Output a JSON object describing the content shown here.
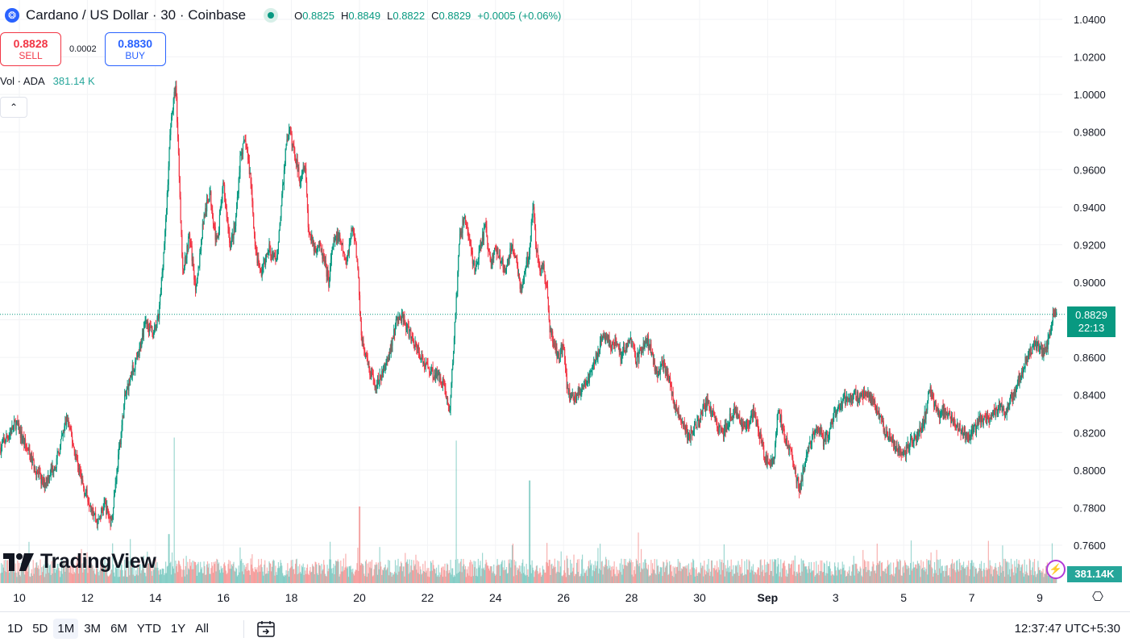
{
  "header": {
    "symbol_icon": "cardano-icon",
    "title": "Cardano / US Dollar · 30 · Coinbase",
    "ohlc": {
      "o_label": "O",
      "o": "0.8825",
      "h_label": "H",
      "h": "0.8849",
      "l_label": "L",
      "l": "0.8822",
      "c_label": "C",
      "c": "0.8829",
      "change": "+0.0005 (+0.06%)"
    }
  },
  "trade": {
    "sell_price": "0.8828",
    "sell_label": "SELL",
    "spread": "0.0002",
    "buy_price": "0.8830",
    "buy_label": "BUY"
  },
  "volume_legend": {
    "label": "Vol · ADA",
    "value": "381.14 K"
  },
  "logo": {
    "text": "TradingView"
  },
  "price_axis": {
    "last_price": "0.8829",
    "countdown": "22:13",
    "volume_label": "381.14K"
  },
  "bottom": {
    "ranges": [
      "1D",
      "5D",
      "1M",
      "3M",
      "6M",
      "YTD",
      "1Y",
      "All"
    ],
    "active_range": "1M",
    "clock": "12:37:47 UTC+5:30"
  },
  "colors": {
    "up": "#089981",
    "down": "#f23645",
    "accent": "#2962ff"
  },
  "chart_data": {
    "type": "candlestick",
    "ylim": [
      0.75,
      1.045
    ],
    "yticks": [
      0.76,
      0.78,
      0.8,
      0.82,
      0.84,
      0.86,
      0.88,
      0.9,
      0.92,
      0.94,
      0.96,
      0.98,
      1.0,
      1.02,
      1.04
    ],
    "ytick_labels": [
      "0.7600",
      "0.7800",
      "0.8000",
      "0.8200",
      "0.8400",
      "0.8600",
      "0.8800",
      "0.9000",
      "0.9200",
      "0.9400",
      "0.9600",
      "0.9800",
      "1.0000",
      "1.0200",
      "1.0400"
    ],
    "xticks": [
      {
        "t": 10,
        "label": "10"
      },
      {
        "t": 12,
        "label": "12"
      },
      {
        "t": 14,
        "label": "14"
      },
      {
        "t": 16,
        "label": "16"
      },
      {
        "t": 18,
        "label": "18"
      },
      {
        "t": 20,
        "label": "20"
      },
      {
        "t": 22,
        "label": "22"
      },
      {
        "t": 24,
        "label": "24"
      },
      {
        "t": 26,
        "label": "26"
      },
      {
        "t": 28,
        "label": "28"
      },
      {
        "t": 30,
        "label": "30"
      },
      {
        "t": 32,
        "label": "Sep"
      },
      {
        "t": 34,
        "label": "3"
      },
      {
        "t": 36,
        "label": "5"
      },
      {
        "t": 38,
        "label": "7"
      },
      {
        "t": 40,
        "label": "9"
      }
    ],
    "x_start": 9.45,
    "x_end": 40.5,
    "last_price": 0.8829,
    "price_path": [
      [
        9.45,
        0.812
      ],
      [
        9.9,
        0.825
      ],
      [
        10.3,
        0.808
      ],
      [
        10.7,
        0.792
      ],
      [
        11.1,
        0.805
      ],
      [
        11.4,
        0.828
      ],
      [
        11.6,
        0.812
      ],
      [
        11.9,
        0.79
      ],
      [
        12.1,
        0.782
      ],
      [
        12.3,
        0.772
      ],
      [
        12.5,
        0.782
      ],
      [
        12.7,
        0.772
      ],
      [
        12.9,
        0.805
      ],
      [
        13.1,
        0.838
      ],
      [
        13.3,
        0.852
      ],
      [
        13.5,
        0.86
      ],
      [
        13.7,
        0.88
      ],
      [
        13.95,
        0.872
      ],
      [
        14.1,
        0.882
      ],
      [
        14.3,
        0.93
      ],
      [
        14.45,
        0.985
      ],
      [
        14.6,
        1.005
      ],
      [
        14.7,
        0.958
      ],
      [
        14.8,
        0.905
      ],
      [
        15.0,
        0.925
      ],
      [
        15.2,
        0.895
      ],
      [
        15.4,
        0.932
      ],
      [
        15.6,
        0.948
      ],
      [
        15.8,
        0.92
      ],
      [
        16.0,
        0.952
      ],
      [
        16.2,
        0.92
      ],
      [
        16.35,
        0.93
      ],
      [
        16.5,
        0.968
      ],
      [
        16.65,
        0.975
      ],
      [
        16.8,
        0.955
      ],
      [
        16.95,
        0.915
      ],
      [
        17.1,
        0.905
      ],
      [
        17.35,
        0.918
      ],
      [
        17.55,
        0.91
      ],
      [
        17.7,
        0.94
      ],
      [
        17.85,
        0.975
      ],
      [
        17.95,
        0.98
      ],
      [
        18.1,
        0.968
      ],
      [
        18.25,
        0.955
      ],
      [
        18.4,
        0.965
      ],
      [
        18.5,
        0.928
      ],
      [
        18.65,
        0.918
      ],
      [
        18.8,
        0.92
      ],
      [
        18.95,
        0.912
      ],
      [
        19.1,
        0.9
      ],
      [
        19.2,
        0.918
      ],
      [
        19.35,
        0.925
      ],
      [
        19.5,
        0.918
      ],
      [
        19.6,
        0.91
      ],
      [
        19.7,
        0.92
      ],
      [
        19.8,
        0.93
      ],
      [
        19.9,
        0.918
      ],
      [
        20.0,
        0.892
      ],
      [
        20.05,
        0.872
      ],
      [
        20.15,
        0.862
      ],
      [
        20.3,
        0.852
      ],
      [
        20.45,
        0.845
      ],
      [
        20.6,
        0.848
      ],
      [
        20.75,
        0.855
      ],
      [
        20.85,
        0.86
      ],
      [
        20.95,
        0.868
      ],
      [
        21.1,
        0.88
      ],
      [
        21.25,
        0.882
      ],
      [
        21.4,
        0.875
      ],
      [
        21.55,
        0.87
      ],
      [
        21.7,
        0.865
      ],
      [
        21.85,
        0.858
      ],
      [
        22.0,
        0.855
      ],
      [
        22.15,
        0.852
      ],
      [
        22.3,
        0.85
      ],
      [
        22.45,
        0.848
      ],
      [
        22.55,
        0.84
      ],
      [
        22.65,
        0.83
      ],
      [
        22.75,
        0.86
      ],
      [
        22.85,
        0.892
      ],
      [
        22.95,
        0.925
      ],
      [
        23.1,
        0.935
      ],
      [
        23.25,
        0.92
      ],
      [
        23.4,
        0.905
      ],
      [
        23.55,
        0.918
      ],
      [
        23.7,
        0.93
      ],
      [
        23.85,
        0.91
      ],
      [
        24.0,
        0.918
      ],
      [
        24.15,
        0.912
      ],
      [
        24.3,
        0.905
      ],
      [
        24.45,
        0.918
      ],
      [
        24.6,
        0.915
      ],
      [
        24.75,
        0.895
      ],
      [
        24.9,
        0.908
      ],
      [
        25.0,
        0.918
      ],
      [
        25.1,
        0.942
      ],
      [
        25.2,
        0.918
      ],
      [
        25.3,
        0.905
      ],
      [
        25.4,
        0.91
      ],
      [
        25.5,
        0.898
      ],
      [
        25.6,
        0.875
      ],
      [
        25.7,
        0.868
      ],
      [
        25.85,
        0.86
      ],
      [
        26.0,
        0.868
      ],
      [
        26.1,
        0.845
      ],
      [
        26.2,
        0.838
      ],
      [
        26.35,
        0.84
      ],
      [
        26.5,
        0.842
      ],
      [
        26.65,
        0.845
      ],
      [
        26.8,
        0.852
      ],
      [
        26.95,
        0.86
      ],
      [
        27.1,
        0.868
      ],
      [
        27.25,
        0.872
      ],
      [
        27.4,
        0.865
      ],
      [
        27.55,
        0.868
      ],
      [
        27.7,
        0.86
      ],
      [
        27.85,
        0.868
      ],
      [
        28.0,
        0.868
      ],
      [
        28.15,
        0.858
      ],
      [
        28.3,
        0.865
      ],
      [
        28.45,
        0.87
      ],
      [
        28.6,
        0.862
      ],
      [
        28.75,
        0.85
      ],
      [
        28.9,
        0.858
      ],
      [
        29.05,
        0.852
      ],
      [
        29.2,
        0.84
      ],
      [
        29.35,
        0.83
      ],
      [
        29.5,
        0.825
      ],
      [
        29.65,
        0.818
      ],
      [
        29.8,
        0.82
      ],
      [
        29.95,
        0.825
      ],
      [
        30.1,
        0.832
      ],
      [
        30.25,
        0.836
      ],
      [
        30.4,
        0.83
      ],
      [
        30.55,
        0.822
      ],
      [
        30.7,
        0.82
      ],
      [
        30.85,
        0.826
      ],
      [
        31.0,
        0.832
      ],
      [
        31.15,
        0.826
      ],
      [
        31.3,
        0.822
      ],
      [
        31.45,
        0.826
      ],
      [
        31.6,
        0.83
      ],
      [
        31.75,
        0.82
      ],
      [
        31.9,
        0.808
      ],
      [
        32.05,
        0.802
      ],
      [
        32.2,
        0.808
      ],
      [
        32.3,
        0.832
      ],
      [
        32.4,
        0.826
      ],
      [
        32.55,
        0.815
      ],
      [
        32.7,
        0.808
      ],
      [
        32.85,
        0.795
      ],
      [
        32.95,
        0.79
      ],
      [
        33.05,
        0.8
      ],
      [
        33.2,
        0.812
      ],
      [
        33.35,
        0.818
      ],
      [
        33.5,
        0.822
      ],
      [
        33.65,
        0.815
      ],
      [
        33.8,
        0.82
      ],
      [
        33.95,
        0.828
      ],
      [
        34.1,
        0.832
      ],
      [
        34.25,
        0.838
      ],
      [
        34.4,
        0.838
      ],
      [
        34.55,
        0.84
      ],
      [
        34.7,
        0.838
      ],
      [
        34.85,
        0.842
      ],
      [
        35.0,
        0.838
      ],
      [
        35.15,
        0.835
      ],
      [
        35.3,
        0.828
      ],
      [
        35.45,
        0.82
      ],
      [
        35.6,
        0.818
      ],
      [
        35.75,
        0.812
      ],
      [
        35.9,
        0.808
      ],
      [
        36.05,
        0.81
      ],
      [
        36.2,
        0.815
      ],
      [
        36.35,
        0.818
      ],
      [
        36.5,
        0.822
      ],
      [
        36.65,
        0.83
      ],
      [
        36.75,
        0.845
      ],
      [
        36.9,
        0.835
      ],
      [
        37.05,
        0.83
      ],
      [
        37.2,
        0.832
      ],
      [
        37.35,
        0.828
      ],
      [
        37.5,
        0.825
      ],
      [
        37.65,
        0.822
      ],
      [
        37.8,
        0.82
      ],
      [
        37.95,
        0.818
      ],
      [
        38.1,
        0.822
      ],
      [
        38.25,
        0.828
      ],
      [
        38.4,
        0.826
      ],
      [
        38.55,
        0.828
      ],
      [
        38.7,
        0.832
      ],
      [
        38.85,
        0.835
      ],
      [
        39.0,
        0.83
      ],
      [
        39.15,
        0.838
      ],
      [
        39.3,
        0.845
      ],
      [
        39.45,
        0.85
      ],
      [
        39.6,
        0.86
      ],
      [
        39.75,
        0.864
      ],
      [
        39.9,
        0.868
      ],
      [
        40.05,
        0.862
      ],
      [
        40.2,
        0.866
      ],
      [
        40.3,
        0.872
      ],
      [
        40.4,
        0.882
      ]
    ],
    "volume_spikes": [
      {
        "t": 14.55,
        "rel": 0.95
      },
      {
        "t": 14.4,
        "rel": 0.32
      },
      {
        "t": 18.0,
        "rel": 0.15
      },
      {
        "t": 20.0,
        "rel": 0.5
      },
      {
        "t": 22.85,
        "rel": 0.93
      },
      {
        "t": 25.0,
        "rel": 0.67
      },
      {
        "t": 28.2,
        "rel": 0.33
      },
      {
        "t": 26.1,
        "rel": 0.18
      },
      {
        "t": 32.8,
        "rel": 0.18
      },
      {
        "t": 36.8,
        "rel": 0.2
      },
      {
        "t": 34.5,
        "rel": 0.12
      },
      {
        "t": 38.0,
        "rel": 0.15
      }
    ]
  }
}
